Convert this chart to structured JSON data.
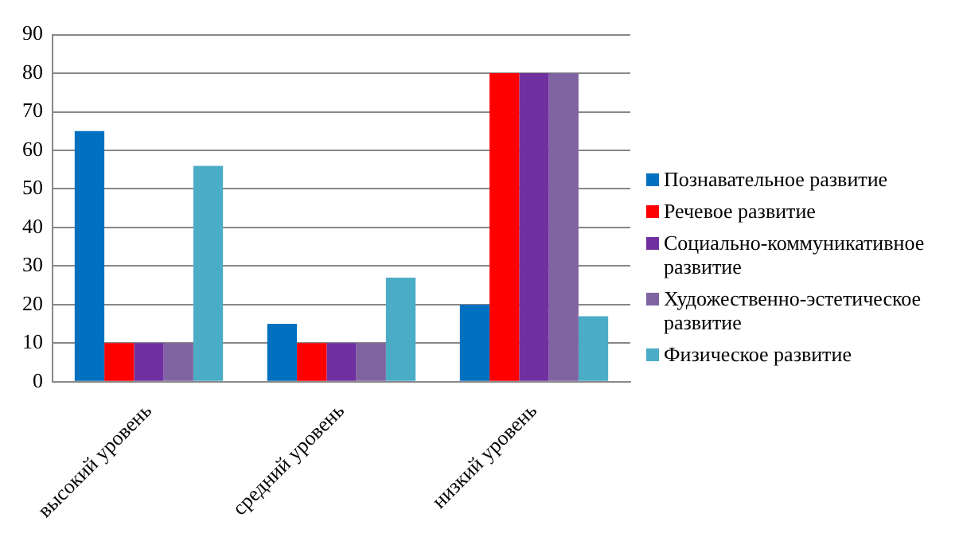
{
  "chart_data": {
    "type": "bar",
    "categories": [
      "высокий уровень",
      "средний уровень",
      "низкий уровень"
    ],
    "series": [
      {
        "name": "Познавательное развитие",
        "color": "#0070c0",
        "values": [
          65,
          15,
          20
        ]
      },
      {
        "name": "Речевое развитие",
        "color": "#ff0000",
        "values": [
          10,
          10,
          80
        ]
      },
      {
        "name": "Социально-коммуникативное развитие",
        "color": "#7030a0",
        "values": [
          10,
          10,
          80
        ]
      },
      {
        "name": "Художественно-эстетическое развитие",
        "color": "#8064a2",
        "values": [
          10,
          10,
          80
        ]
      },
      {
        "name": "Физическое развитие",
        "color": "#4bacc6",
        "values": [
          56,
          27,
          17
        ]
      }
    ],
    "ylim": [
      0,
      90
    ],
    "yticks": [
      0,
      10,
      20,
      30,
      40,
      50,
      60,
      70,
      80,
      90
    ],
    "grid": "y",
    "legend": "right"
  }
}
